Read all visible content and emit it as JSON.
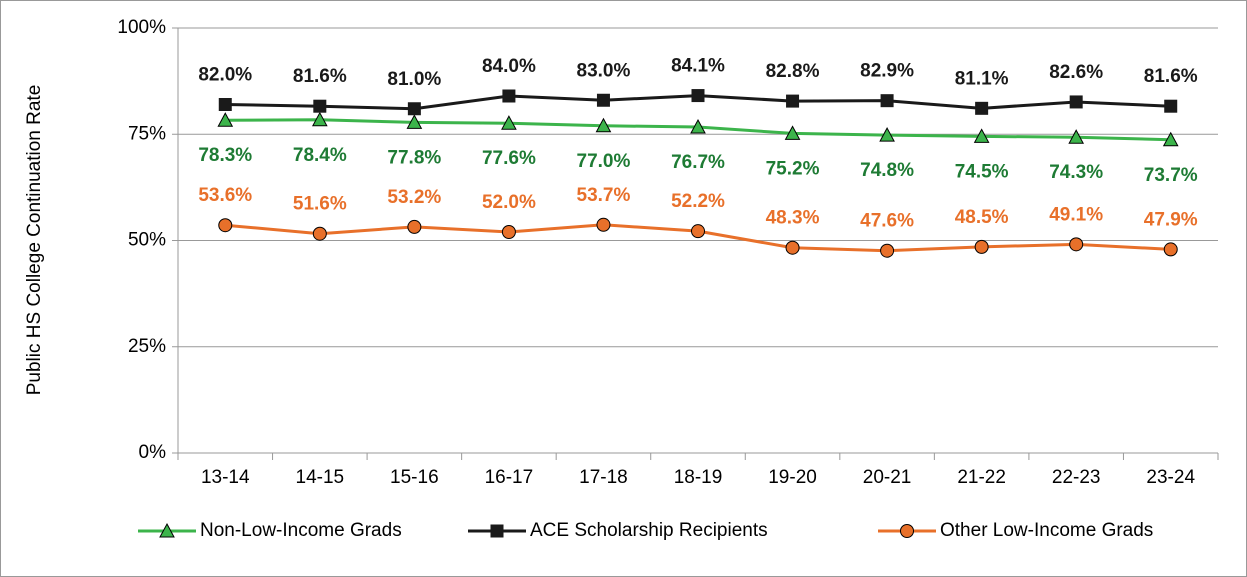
{
  "chart_data": {
    "type": "line",
    "y_axis_label": "Public HS College Continuation Rate",
    "categories": [
      "13-14",
      "14-15",
      "15-16",
      "16-17",
      "17-18",
      "18-19",
      "19-20",
      "20-21",
      "21-22",
      "22-23",
      "23-24"
    ],
    "ylim": [
      0,
      100
    ],
    "yticks": [
      {
        "value": 0,
        "label": "0%"
      },
      {
        "value": 25,
        "label": "25%"
      },
      {
        "value": 50,
        "label": "50%"
      },
      {
        "value": 75,
        "label": "75%"
      },
      {
        "value": 100,
        "label": "100%"
      }
    ],
    "grid": true,
    "legend": "bottom",
    "series": [
      {
        "name": "Non-Low-Income Grads",
        "color": "#3cb44b",
        "label_color": "#1e7b34",
        "marker": "triangle",
        "label_position": "below",
        "values": [
          78.3,
          78.4,
          77.8,
          77.6,
          77.0,
          76.7,
          75.2,
          74.8,
          74.5,
          74.3,
          73.7
        ],
        "value_labels": [
          "78.3%",
          "78.4%",
          "77.8%",
          "77.6%",
          "77.0%",
          "76.7%",
          "75.2%",
          "74.8%",
          "74.5%",
          "74.3%",
          "73.7%"
        ]
      },
      {
        "name": "ACE Scholarship Recipients",
        "color": "#1a1a1a",
        "label_color": "#1a1a1a",
        "marker": "square",
        "label_position": "above",
        "values": [
          82.0,
          81.6,
          81.0,
          84.0,
          83.0,
          84.1,
          82.8,
          82.9,
          81.1,
          82.6,
          81.6
        ],
        "value_labels": [
          "82.0%",
          "81.6%",
          "81.0%",
          "84.0%",
          "83.0%",
          "84.1%",
          "82.8%",
          "82.9%",
          "81.1%",
          "82.6%",
          "81.6%"
        ]
      },
      {
        "name": "Other Low-Income Grads",
        "color": "#e8702a",
        "label_color": "#e8702a",
        "marker": "circle",
        "label_position": "above",
        "values": [
          53.6,
          51.6,
          53.2,
          52.0,
          53.7,
          52.2,
          48.3,
          47.6,
          48.5,
          49.1,
          47.9
        ],
        "value_labels": [
          "53.6%",
          "51.6%",
          "53.2%",
          "52.0%",
          "53.7%",
          "52.2%",
          "48.3%",
          "47.6%",
          "48.5%",
          "49.1%",
          "47.9%"
        ]
      }
    ]
  }
}
